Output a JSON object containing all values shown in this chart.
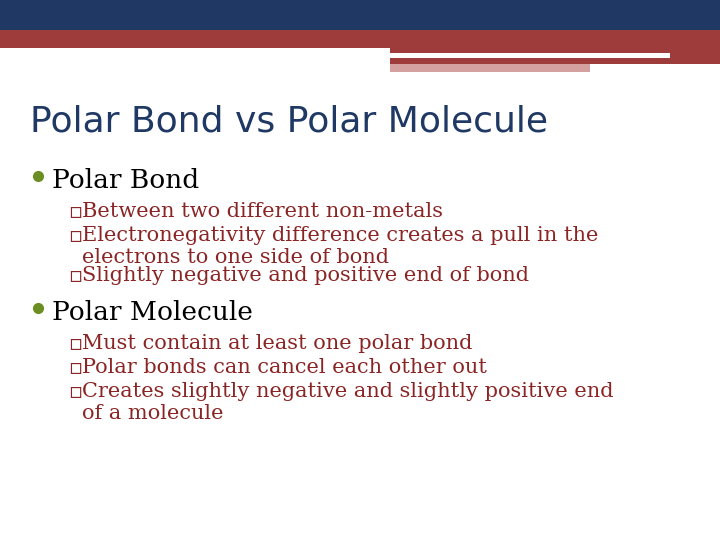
{
  "title": "Polar Bond vs Polar Molecule",
  "title_color": "#1F3864",
  "title_fontsize": 26,
  "background_color": "#FFFFFF",
  "header_blue_color": "#1F3864",
  "header_red_color": "#9E3B3B",
  "header_pink_color": "#D4A0A0",
  "bullet_dot_color": "#6B8E23",
  "bullet1_text": "Polar Bond",
  "bullet1_fontsize": 19,
  "bullet1_color": "#000000",
  "sub_bullet1_color": "#8B2525",
  "sub_bullet1_fontsize": 15,
  "sub_bullets_1": [
    "Between two different non-metals",
    "Electronegativity difference creates a pull in the\nelectrons to one side of bond",
    "Slightly negative and positive end of bond"
  ],
  "bullet2_text": "Polar Molecule",
  "bullet2_fontsize": 19,
  "bullet2_color": "#000000",
  "sub_bullet2_color": "#8B2525",
  "sub_bullet2_fontsize": 15,
  "sub_bullets_2": [
    "Must contain at least one polar bond",
    "Polar bonds can cancel each other out",
    "Creates slightly negative and slightly positive end\nof a molecule"
  ]
}
